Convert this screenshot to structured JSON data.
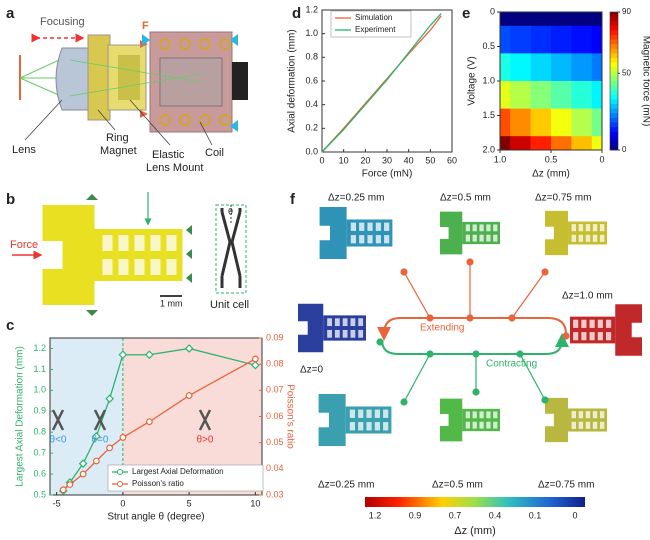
{
  "panel_labels": [
    "a",
    "b",
    "c",
    "d",
    "e",
    "f"
  ],
  "panel_a": {
    "focusing": "Focusing",
    "force_symbol": "F",
    "lens": "Lens",
    "ring_magnet": [
      "Ring",
      "Magnet"
    ],
    "elastic_lens_mount": [
      "Elastic",
      "Lens Mount"
    ],
    "coil": "Coil"
  },
  "panel_b": {
    "force": "Force",
    "scale_bar": "1 mm",
    "angle": "θ",
    "unit_cell": "Unit cell"
  },
  "chart_data": [
    {
      "type": "line",
      "xlabel": "Strut angle θ (degree)",
      "ylabel": "Largest Axial Deformation (mm)",
      "y2label": "Poisson's ratio",
      "x": [
        -4.5,
        -4,
        -3,
        -2,
        -1,
        0,
        2,
        5,
        10
      ],
      "series": [
        {
          "name": "Largest Axial Deformation",
          "color": "#2db36b",
          "marker": "diamond",
          "values": [
            0.52,
            0.56,
            0.65,
            0.78,
            0.96,
            1.17,
            1.17,
            1.2,
            1.12
          ]
        },
        {
          "name": "Poisson's ratio",
          "color": "#e8643a",
          "marker": "circle",
          "axis": "y2",
          "values": [
            0.032,
            0.034,
            0.038,
            0.043,
            0.048,
            0.052,
            0.058,
            0.068,
            0.082
          ]
        }
      ],
      "xlim": [
        -5.5,
        10.5
      ],
      "xticks": [
        -5,
        0,
        5,
        10
      ],
      "ylim": [
        0.5,
        1.25
      ],
      "yticks": [
        0.5,
        0.6,
        0.7,
        0.8,
        0.9,
        {
          "value": 1,
          "label": "1.0"
        },
        1.1,
        1.2
      ],
      "y2lim": [
        0.03,
        0.09
      ],
      "y2ticks": [
        0.03,
        0.04,
        0.05,
        0.06,
        0.07,
        0.08,
        0.09
      ],
      "annotations": [
        "θ<0",
        "θ=0",
        "θ>0"
      ],
      "legend": "lower right"
    },
    {
      "type": "line",
      "xlabel": "Force (mN)",
      "ylabel": "Axial deformation (mm)",
      "x": [
        0,
        10,
        20,
        30,
        40,
        50,
        55
      ],
      "series": [
        {
          "name": "Simulation",
          "color": "#e8643a",
          "values": [
            0,
            0.2,
            0.41,
            0.62,
            0.83,
            1.03,
            1.15
          ]
        },
        {
          "name": "Experiment",
          "color": "#2db36b",
          "values": [
            0,
            0.19,
            0.4,
            0.61,
            0.84,
            1.07,
            1.17
          ]
        }
      ],
      "xlim": [
        0,
        60
      ],
      "xticks": [
        0,
        10,
        20,
        30,
        40,
        50,
        60
      ],
      "ylim": [
        0,
        1.2
      ],
      "yticks": [
        {
          "value": 0,
          "label": "0.0"
        },
        0.2,
        0.4,
        0.6,
        0.8,
        {
          "value": 1,
          "label": "1.0"
        },
        1.2
      ],
      "legend": "upper left"
    },
    {
      "type": "heatmap",
      "xlabel": "Δz (mm)",
      "ylabel": "Voltage (V)",
      "clabel": "Magnetic force (mN)",
      "x": [
        1,
        0.8,
        0.6,
        0.4,
        0.2,
        0
      ],
      "y": [
        0,
        0.4,
        0.8,
        1.2,
        1.6,
        2
      ],
      "values": [
        [
          0,
          0,
          0,
          0,
          0,
          0
        ],
        [
          18,
          16.6,
          15.2,
          13.8,
          12.4,
          11
        ],
        [
          36,
          33.2,
          30.4,
          27.6,
          24.8,
          22
        ],
        [
          54,
          49.8,
          45.6,
          41.4,
          37.2,
          33
        ],
        [
          72,
          66.4,
          60.8,
          55.2,
          49.6,
          44
        ],
        [
          90,
          83,
          76,
          69,
          62,
          55
        ]
      ],
      "xlim": [
        1,
        0
      ],
      "xticks": [
        {
          "value": 1,
          "label": "1.0"
        },
        0.5,
        0
      ],
      "ylim": [
        0,
        2
      ],
      "yinvert": true,
      "yticks": [
        0,
        0.5,
        {
          "value": 1,
          "label": "1.0"
        },
        1.5,
        {
          "value": 2,
          "label": "2.0"
        }
      ],
      "clim": [
        0,
        90
      ],
      "cticks": [
        0,
        50,
        90
      ],
      "colormap": "jet"
    }
  ],
  "panel_f": {
    "top_states": [
      "Δz=0.25 mm",
      "Δz=0.5 mm",
      "Δz=0.75 mm"
    ],
    "start_state": "Δz=0",
    "end_state": "Δz=1.0 mm",
    "bottom_states": [
      "Δz=0.25 mm",
      "Δz=0.5 mm",
      "Δz=0.75 mm"
    ],
    "extending": "Extending",
    "contracting": "Contracting",
    "colorbar": {
      "ticks": [
        "1.2",
        "0.9",
        "0.7",
        "0.4",
        "0.1",
        "0"
      ],
      "label": "Δz (mm)"
    }
  }
}
